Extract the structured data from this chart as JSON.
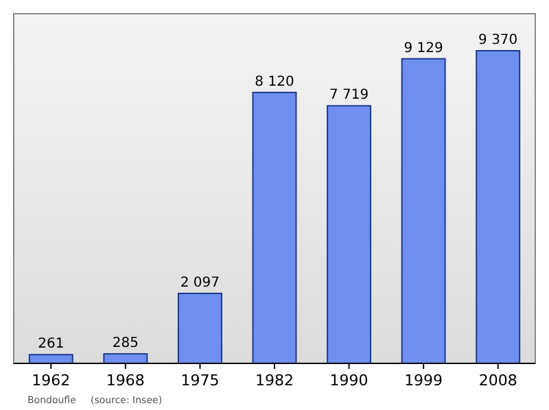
{
  "chart_data": {
    "type": "bar",
    "categories": [
      "1962",
      "1968",
      "1975",
      "1982",
      "1990",
      "1999",
      "2008"
    ],
    "values": [
      261,
      285,
      2097,
      8120,
      7719,
      9129,
      9370
    ],
    "color": "#6f8ff0",
    "data_labels": true,
    "value_labels": [
      "261",
      "285",
      "2 097",
      "8 120",
      "7 719",
      "9 129",
      "9 370"
    ],
    "annotations": [
      "Bondoufle",
      "(source: Insee)"
    ]
  }
}
